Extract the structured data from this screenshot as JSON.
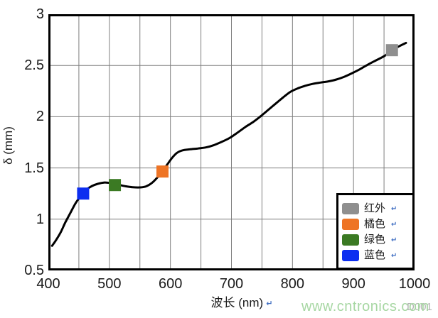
{
  "page": {
    "background": "#ffffff"
  },
  "watermark": {
    "text": "www.cntronics.com",
    "color": "#a7d7a3"
  },
  "corner_code": {
    "text": "D001",
    "color": "#b3b3b3"
  },
  "marks": {
    "return_mark": "↵",
    "color": "#4472c4"
  },
  "chart_data": {
    "type": "line",
    "title": "",
    "xlabel": "波长 (nm)",
    "ylabel": "δ (mm)",
    "xlim": [
      400,
      1000
    ],
    "ylim": [
      0.5,
      3
    ],
    "x_ticks": [
      400,
      500,
      600,
      700,
      800,
      900,
      1000
    ],
    "y_ticks": [
      3,
      2.5,
      2,
      1.5,
      1,
      0.5
    ],
    "x_grid_lines": [
      450,
      500,
      550,
      600,
      650,
      700,
      750,
      800,
      850,
      900,
      950
    ],
    "y_grid_lines": [
      1.0,
      1.5,
      2.0,
      2.5
    ],
    "grid": true,
    "grid_color": "#7f7f7f",
    "border_color": "#000000",
    "curve_color": "#000000",
    "legend_position": "bottom-right",
    "series": [
      {
        "name": "penetration-depth-curve",
        "points": [
          [
            406,
            0.74
          ],
          [
            412,
            0.79
          ],
          [
            420,
            0.87
          ],
          [
            428,
            0.97
          ],
          [
            436,
            1.06
          ],
          [
            444,
            1.15
          ],
          [
            451,
            1.21
          ],
          [
            457,
            1.25
          ],
          [
            464,
            1.295
          ],
          [
            472,
            1.325
          ],
          [
            481,
            1.345
          ],
          [
            492,
            1.358
          ],
          [
            503,
            1.352
          ],
          [
            514,
            1.338
          ],
          [
            526,
            1.322
          ],
          [
            538,
            1.312
          ],
          [
            550,
            1.31
          ],
          [
            560,
            1.32
          ],
          [
            570,
            1.355
          ],
          [
            579,
            1.41
          ],
          [
            587,
            1.467
          ],
          [
            595,
            1.535
          ],
          [
            603,
            1.6
          ],
          [
            611,
            1.648
          ],
          [
            620,
            1.672
          ],
          [
            632,
            1.682
          ],
          [
            645,
            1.69
          ],
          [
            658,
            1.7
          ],
          [
            670,
            1.72
          ],
          [
            683,
            1.752
          ],
          [
            697,
            1.792
          ],
          [
            710,
            1.845
          ],
          [
            723,
            1.9
          ],
          [
            736,
            1.95
          ],
          [
            748,
            2.005
          ],
          [
            760,
            2.065
          ],
          [
            772,
            2.125
          ],
          [
            784,
            2.185
          ],
          [
            796,
            2.24
          ],
          [
            808,
            2.275
          ],
          [
            820,
            2.3
          ],
          [
            833,
            2.32
          ],
          [
            846,
            2.333
          ],
          [
            859,
            2.345
          ],
          [
            872,
            2.363
          ],
          [
            885,
            2.39
          ],
          [
            898,
            2.425
          ],
          [
            911,
            2.465
          ],
          [
            924,
            2.51
          ],
          [
            937,
            2.55
          ],
          [
            950,
            2.59
          ],
          [
            962,
            2.64
          ],
          [
            974,
            2.685
          ],
          [
            986,
            2.72
          ]
        ]
      }
    ],
    "markers": [
      {
        "label": "蓝色",
        "color": "#0d2ef0",
        "x": 457,
        "y": 1.25
      },
      {
        "label": "绿色",
        "color": "#3b7a23",
        "x": 509,
        "y": 1.333
      },
      {
        "label": "橘色",
        "color": "#ee7425",
        "x": 587,
        "y": 1.465
      },
      {
        "label": "红外",
        "color": "#8f8f8f",
        "x": 963,
        "y": 2.649
      }
    ],
    "legend_entries": [
      {
        "label": "红外",
        "color": "#8f8f8f"
      },
      {
        "label": "橘色",
        "color": "#ee7425"
      },
      {
        "label": "绿色",
        "color": "#3b7a23"
      },
      {
        "label": "蓝色",
        "color": "#0d2ef0"
      }
    ]
  }
}
